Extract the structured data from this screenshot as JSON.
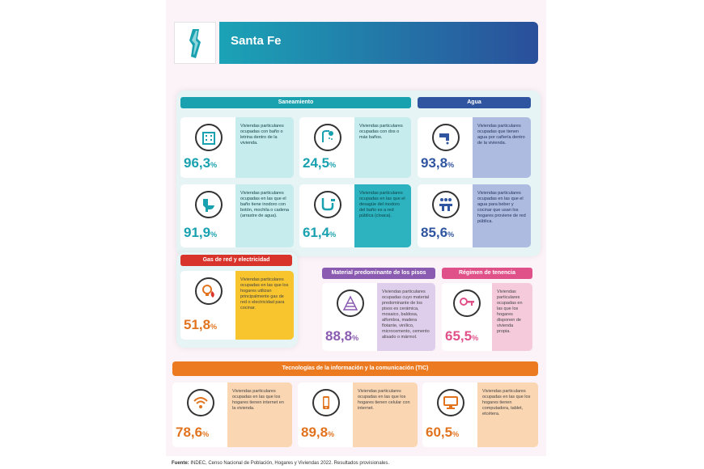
{
  "header": {
    "title": "Santa Fe",
    "icon": "province-map-icon"
  },
  "sections": {
    "saneamiento": "Saneamiento",
    "agua": "Agua",
    "gas": "Gas de red y electricidad",
    "pisos": "Material predominante de los pisos",
    "tenencia": "Régimen de tenencia",
    "tic": "Tecnologías de la información y la comunicación (TIC)"
  },
  "cards": {
    "banio_letrina": {
      "value": "96,3",
      "unit": "%",
      "icon": "building-icon",
      "text": "Viviendas particulares ocupadas con baño o letrina dentro de la vivienda."
    },
    "dos_banios": {
      "value": "24,5",
      "unit": "%",
      "icon": "shower-icon",
      "text": "Viviendas particulares ocupadas con dos o más baños."
    },
    "agua_caneria": {
      "value": "93,8",
      "unit": "%",
      "icon": "faucet-icon",
      "text": "Viviendas particulares ocupadas que tienen agua por cañería dentro de la vivienda."
    },
    "inodoro": {
      "value": "91,9",
      "unit": "%",
      "icon": "toilet-icon",
      "text": "Viviendas particulares ocupadas en las que el baño tiene inodoro con botón, mochila o cadena (arrastre de agua)."
    },
    "desague_cloaca": {
      "value": "61,4",
      "unit": "%",
      "icon": "pipe-icon",
      "text": "Viviendas particulares ocupadas en las que el desagüe del inodoro del baño es a red pública (cloaca)."
    },
    "agua_red_publica": {
      "value": "85,6",
      "unit": "%",
      "icon": "water-network-icon",
      "text": "Viviendas particulares ocupadas en las que el agua para beber y cocinar que usan los hogares proviene de red pública."
    },
    "gas_red": {
      "value": "51,8",
      "unit": "%",
      "icon": "gas-bulb-icon",
      "text": "Viviendas particulares ocupadas en las que los hogares utilizan principalmente gas de red o electricidad para cocinar."
    },
    "pisos": {
      "value": "88,8",
      "unit": "%",
      "icon": "floor-icon",
      "text": "Viviendas particulares ocupadas cuyo material predominante de los pisos es cerámica, mosaico, baldosa, alfombra, madera flotante, vinílico, microcemento, cemento alisado o mármol."
    },
    "propia": {
      "value": "65,5",
      "unit": "%",
      "icon": "key-icon",
      "text": "Viviendas particulares ocupadas en las que los hogares disponen de vivienda propia."
    },
    "internet": {
      "value": "78,6",
      "unit": "%",
      "icon": "wifi-icon",
      "text": "Viviendas particulares ocupadas en las que los hogares tienen internet en la vivienda."
    },
    "celular": {
      "value": "89,8",
      "unit": "%",
      "icon": "mobile-phone-icon",
      "text": "Viviendas particulares ocupadas en las que los hogares tienen celular con internet."
    },
    "computadora": {
      "value": "60,5",
      "unit": "%",
      "icon": "computer-icon",
      "text": "Viviendas particulares ocupadas en las que los hogares tienen computadora, tablet, etcétera."
    }
  },
  "footer": {
    "source_label": "Fuente:",
    "source_text": "INDEC, Censo Nacional de Población, Hogares y Viviendas 2022. Resultados provisionales."
  },
  "colors": {
    "teal": "#1aa1b0",
    "blue": "#2f55a0",
    "red": "#d9342b",
    "purple": "#8a5bb0",
    "pink": "#e0518a",
    "orange": "#ec7a21"
  }
}
